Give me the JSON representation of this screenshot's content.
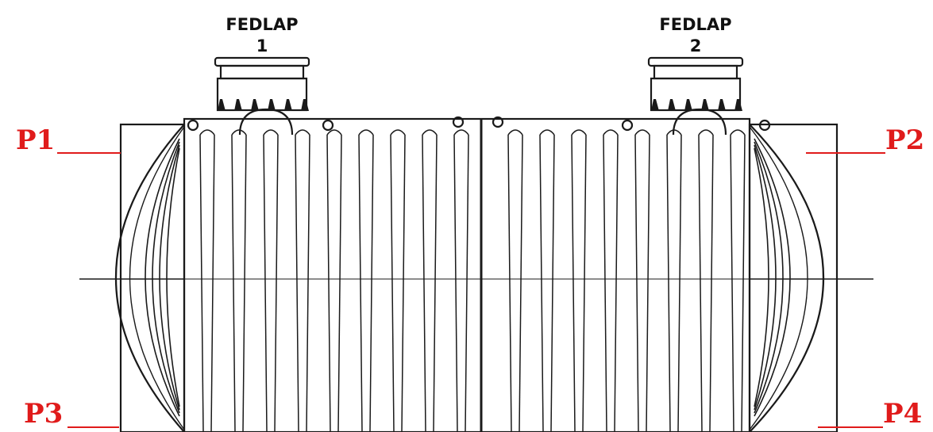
{
  "lids": [
    {
      "title": "FEDLAP",
      "number": "1"
    },
    {
      "title": "FEDLAP",
      "number": "2"
    }
  ],
  "points": {
    "p1": "P1",
    "p2": "P2",
    "p3": "P3",
    "p4": "P4"
  },
  "colors": {
    "label_red": "#e01b1b",
    "line": "#1a1a1a",
    "background": "#ffffff"
  }
}
